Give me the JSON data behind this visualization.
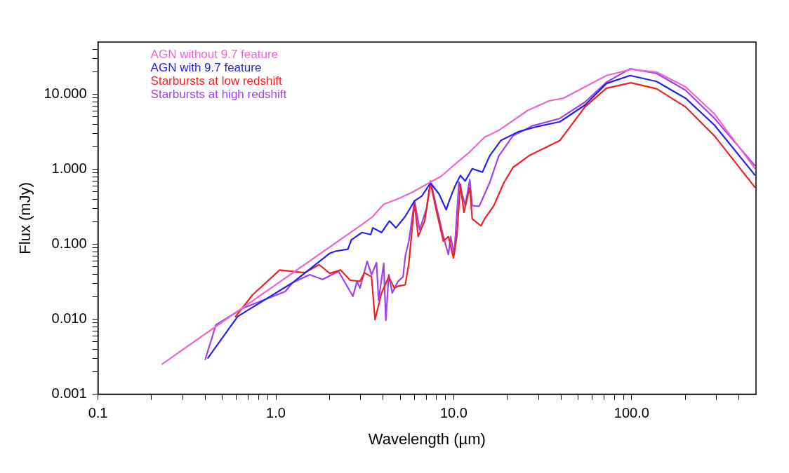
{
  "chart_data": {
    "type": "line",
    "xlabel": "Wavelength (µm)",
    "ylabel": "Flux (mJy)",
    "log": "xy",
    "legend": "top left",
    "grid": false,
    "marker": "none",
    "line_style": "solid",
    "xlim": [
      0.1,
      500
    ],
    "ylim": [
      0.001,
      50
    ],
    "xticks": [
      {
        "value": 0.1,
        "label": "0.1"
      },
      {
        "value": 0.2,
        "label": null
      },
      {
        "value": 0.3,
        "label": null
      },
      {
        "value": 0.4,
        "label": null
      },
      {
        "value": 0.5,
        "label": null
      },
      {
        "value": 0.6,
        "label": null
      },
      {
        "value": 0.7,
        "label": null
      },
      {
        "value": 0.8,
        "label": null
      },
      {
        "value": 0.9,
        "label": null
      },
      {
        "value": 1,
        "label": "1.0"
      },
      {
        "value": 2,
        "label": null
      },
      {
        "value": 3,
        "label": null
      },
      {
        "value": 4,
        "label": null
      },
      {
        "value": 5,
        "label": null
      },
      {
        "value": 6,
        "label": null
      },
      {
        "value": 7,
        "label": null
      },
      {
        "value": 8,
        "label": null
      },
      {
        "value": 9,
        "label": null
      },
      {
        "value": 10,
        "label": "10.0"
      },
      {
        "value": 20,
        "label": null
      },
      {
        "value": 30,
        "label": null
      },
      {
        "value": 40,
        "label": null
      },
      {
        "value": 50,
        "label": null
      },
      {
        "value": 60,
        "label": null
      },
      {
        "value": 70,
        "label": null
      },
      {
        "value": 80,
        "label": null
      },
      {
        "value": 90,
        "label": null
      },
      {
        "value": 100,
        "label": "100.0"
      },
      {
        "value": 200,
        "label": null
      },
      {
        "value": 300,
        "label": null
      },
      {
        "value": 400,
        "label": null
      }
    ],
    "yticks": [
      {
        "value": 0.001,
        "label": "0.001"
      },
      {
        "value": 0.002,
        "label": null
      },
      {
        "value": 0.003,
        "label": null
      },
      {
        "value": 0.004,
        "label": null
      },
      {
        "value": 0.005,
        "label": null
      },
      {
        "value": 0.006,
        "label": null
      },
      {
        "value": 0.007,
        "label": null
      },
      {
        "value": 0.008,
        "label": null
      },
      {
        "value": 0.009,
        "label": null
      },
      {
        "value": 0.01,
        "label": "0.010"
      },
      {
        "value": 0.02,
        "label": null
      },
      {
        "value": 0.03,
        "label": null
      },
      {
        "value": 0.04,
        "label": null
      },
      {
        "value": 0.05,
        "label": null
      },
      {
        "value": 0.06,
        "label": null
      },
      {
        "value": 0.07,
        "label": null
      },
      {
        "value": 0.08,
        "label": null
      },
      {
        "value": 0.09,
        "label": null
      },
      {
        "value": 0.1,
        "label": "0.100"
      },
      {
        "value": 0.2,
        "label": null
      },
      {
        "value": 0.3,
        "label": null
      },
      {
        "value": 0.4,
        "label": null
      },
      {
        "value": 0.5,
        "label": null
      },
      {
        "value": 0.6,
        "label": null
      },
      {
        "value": 0.7,
        "label": null
      },
      {
        "value": 0.8,
        "label": null
      },
      {
        "value": 0.9,
        "label": null
      },
      {
        "value": 1,
        "label": "1.000"
      },
      {
        "value": 2,
        "label": null
      },
      {
        "value": 3,
        "label": null
      },
      {
        "value": 4,
        "label": null
      },
      {
        "value": 5,
        "label": null
      },
      {
        "value": 6,
        "label": null
      },
      {
        "value": 7,
        "label": null
      },
      {
        "value": 8,
        "label": null
      },
      {
        "value": 9,
        "label": null
      },
      {
        "value": 10,
        "label": "10.000"
      },
      {
        "value": 20,
        "label": null
      },
      {
        "value": 30,
        "label": null
      },
      {
        "value": 40,
        "label": null
      }
    ],
    "series": [
      {
        "name": "AGN without 9.7 feature",
        "color": "#ee66cc",
        "x": [
          0.228,
          3.05,
          3.51,
          4.04,
          4.86,
          5.86,
          7.05,
          8.5,
          10.2,
          12.3,
          14.9,
          17.9,
          26,
          34.3,
          41.3,
          54.6,
          72.2,
          99,
          138,
          201,
          292,
          495
        ],
        "values": [
          0.0025,
          0.184,
          0.236,
          0.342,
          0.404,
          0.497,
          0.635,
          0.81,
          1.18,
          1.71,
          2.69,
          3.31,
          6.1,
          8.2,
          8.9,
          12.6,
          17.9,
          21.6,
          19.9,
          12.6,
          5.5,
          1.02
        ]
      },
      {
        "name": "AGN with 9.7 feature",
        "color": "#2222ee",
        "x": [
          0.413,
          0.61,
          1.24,
          2.01,
          2.16,
          2.54,
          2.66,
          3.05,
          3.41,
          3.51,
          3.93,
          4.35,
          4.73,
          5.34,
          6.02,
          6.61,
          7.4,
          8.26,
          9.07,
          9.5,
          10.2,
          10.9,
          11.6,
          12.7,
          14.5,
          15.9,
          18.4,
          23,
          28.5,
          39.5,
          54.6,
          72.2,
          98,
          138,
          201,
          292,
          495
        ],
        "values": [
          0.003,
          0.0109,
          0.0307,
          0.076,
          0.081,
          0.086,
          0.115,
          0.144,
          0.135,
          0.166,
          0.144,
          0.205,
          0.166,
          0.236,
          0.38,
          0.44,
          0.66,
          0.47,
          0.29,
          0.4,
          0.61,
          0.83,
          0.7,
          1.02,
          0.92,
          1.51,
          2.43,
          3.17,
          3.66,
          4.32,
          7.2,
          14,
          17.9,
          14.9,
          8.9,
          3.9,
          0.83
        ]
      },
      {
        "name": "Starbursts at low redshift",
        "color": "#ee2222",
        "x": [
          0.59,
          0.74,
          1.05,
          1.45,
          1.75,
          2.01,
          2.31,
          2.61,
          2.97,
          3.14,
          3.45,
          3.61,
          3.93,
          4.31,
          4.64,
          4.86,
          5.34,
          5.59,
          6.02,
          6.31,
          6.86,
          7.4,
          7.96,
          8.74,
          9.33,
          9.96,
          10.4,
          10.9,
          11.4,
          12.3,
          12.7,
          14.2,
          14.9,
          16.8,
          19.1,
          21.5,
          26.7,
          39.5,
          54.6,
          72.2,
          99,
          138,
          201,
          292,
          495
        ],
        "values": [
          0.0107,
          0.0212,
          0.0454,
          0.0418,
          0.0535,
          0.041,
          0.0454,
          0.0333,
          0.032,
          0.0418,
          0.037,
          0.0099,
          0.0225,
          0.037,
          0.026,
          0.0277,
          0.0289,
          0.0558,
          0.357,
          0.127,
          0.205,
          0.66,
          0.29,
          0.11,
          0.127,
          0.0658,
          0.127,
          0.635,
          0.267,
          0.57,
          0.218,
          0.177,
          0.218,
          0.329,
          0.66,
          1.06,
          1.54,
          2.43,
          6.8,
          12.1,
          14.3,
          11.9,
          6.8,
          2.8,
          0.57
        ]
      },
      {
        "name": "Starbursts at high redshift",
        "color": "#a040f0",
        "x": [
          0.4,
          0.46,
          0.65,
          1.13,
          1.24,
          1.55,
          1.83,
          2.25,
          2.71,
          2.86,
          2.97,
          3.26,
          3.45,
          3.68,
          3.78,
          4.04,
          4.15,
          4.31,
          4.51,
          4.86,
          5.19,
          5.34,
          5.59,
          6.02,
          6.43,
          7.05,
          7.4,
          7.96,
          8.74,
          9.33,
          9.6,
          10.05,
          10.7,
          11.6,
          12.3,
          12.7,
          13.9,
          15.9,
          17.9,
          21.5,
          27.7,
          39.5,
          54.6,
          72.2,
          98,
          138,
          201,
          292,
          495
        ],
        "values": [
          0.00286,
          0.0084,
          0.014,
          0.0235,
          0.0307,
          0.0393,
          0.034,
          0.0436,
          0.0203,
          0.032,
          0.026,
          0.0593,
          0.0393,
          0.057,
          0.018,
          0.0558,
          0.0097,
          0.0393,
          0.0225,
          0.032,
          0.037,
          0.07,
          0.11,
          0.38,
          0.156,
          0.309,
          0.7,
          0.329,
          0.127,
          0.073,
          0.127,
          0.073,
          0.676,
          0.329,
          0.73,
          0.329,
          0.322,
          0.66,
          1.51,
          2.8,
          3.82,
          4.79,
          7.9,
          14.6,
          22,
          19.1,
          11.4,
          4.8,
          1.11
        ]
      }
    ]
  }
}
